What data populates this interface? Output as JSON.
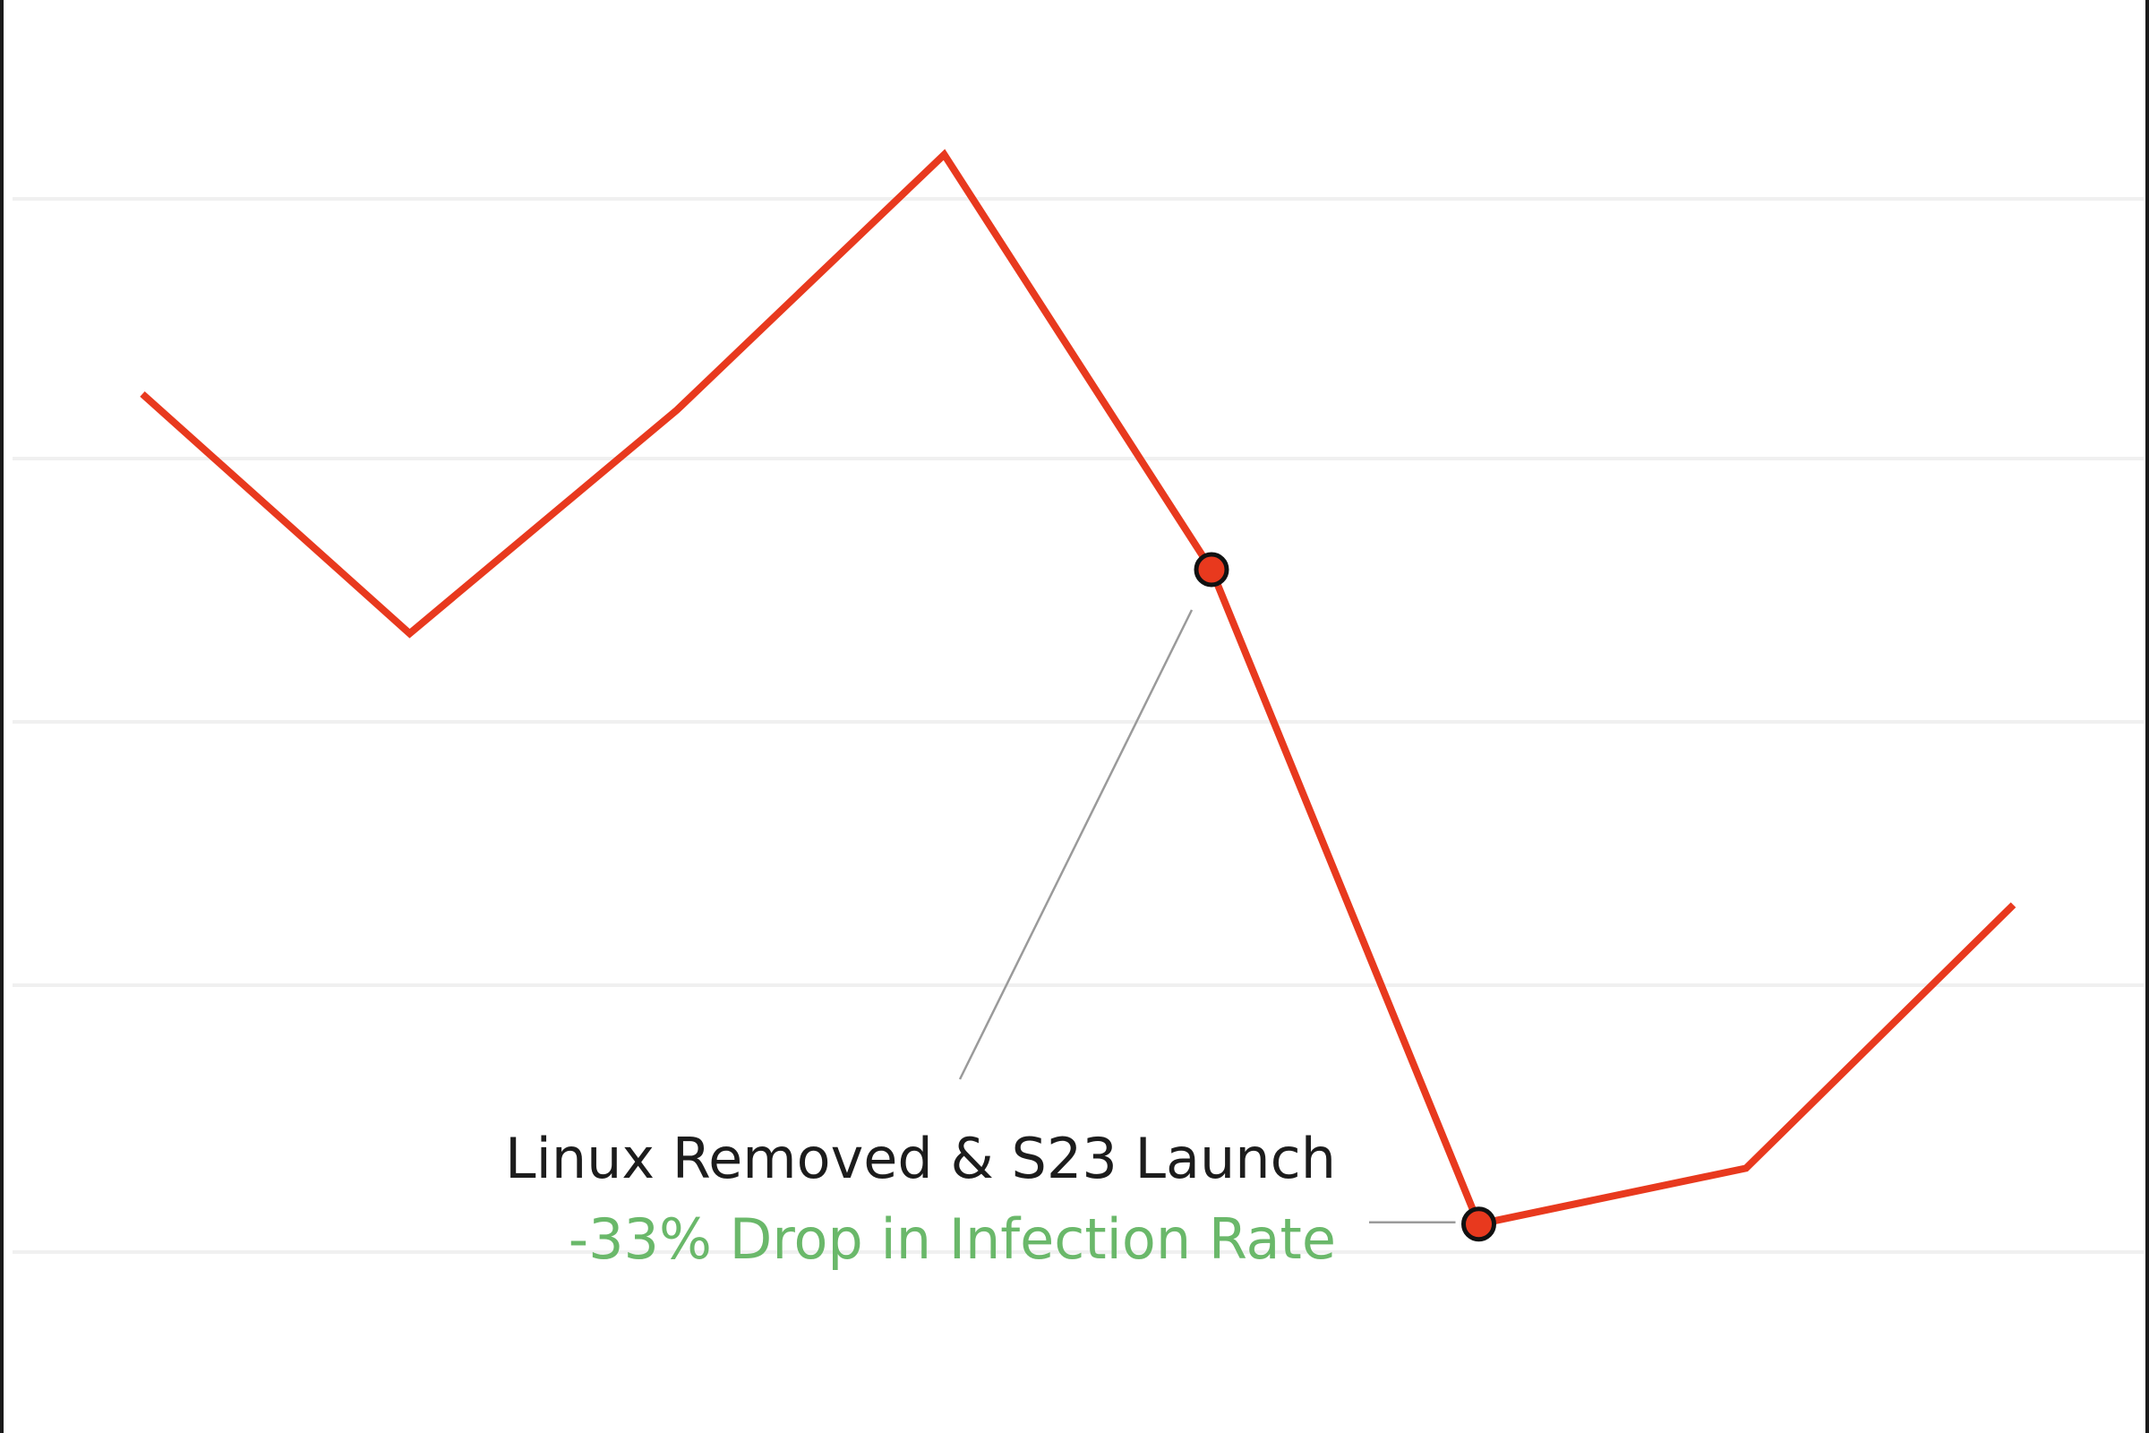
{
  "chart_data": {
    "type": "line",
    "x": [
      1,
      2,
      3,
      4,
      5,
      6,
      7,
      8
    ],
    "series": [
      {
        "values": [
          62,
          47,
          61,
          77,
          51,
          10,
          13.5,
          30
        ],
        "color": "#e8391e"
      }
    ],
    "ylim": [
      0,
      85
    ],
    "xlim": [
      0.5,
      8.5
    ],
    "grid": true,
    "legend": "none",
    "markers": [
      {
        "x": 5,
        "y": 51
      },
      {
        "x": 6,
        "y": 10
      }
    ],
    "annotation": {
      "title": "Linux Removed & S23 Launch",
      "subtitle": "-33% Drop in Infection Rate",
      "subtitle_color": "#6ab86a"
    }
  }
}
